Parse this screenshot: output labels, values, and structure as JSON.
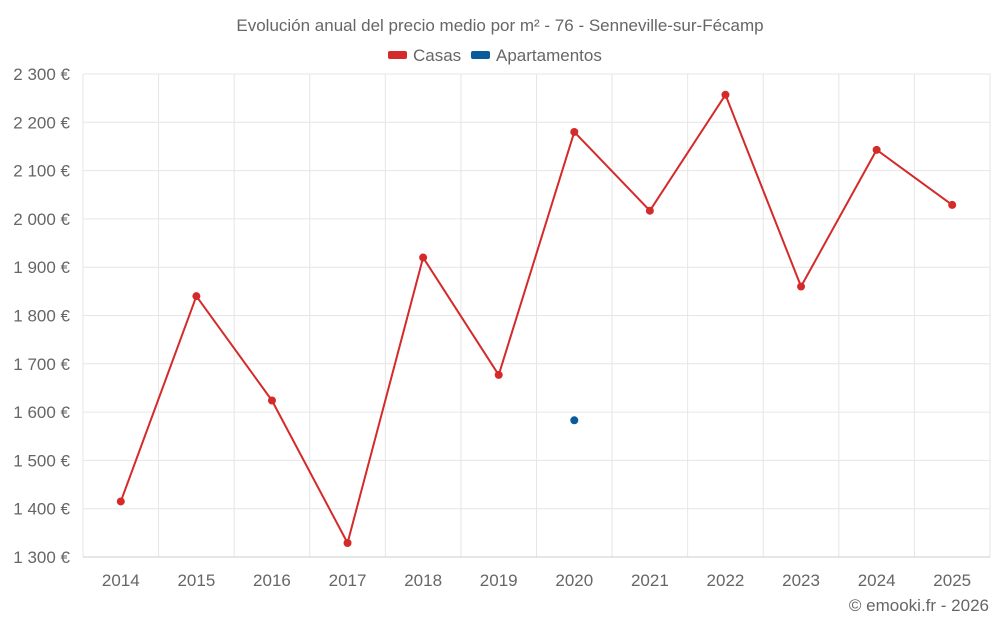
{
  "chart_data": {
    "type": "line",
    "title": "Evolución anual del precio medio por m² - 76 - Senneville-sur-Fécamp",
    "categories": [
      "2014",
      "2015",
      "2016",
      "2017",
      "2018",
      "2019",
      "2020",
      "2021",
      "2022",
      "2023",
      "2024",
      "2025"
    ],
    "series": [
      {
        "name": "Casas",
        "color": "#d42a2a",
        "values": [
          1415,
          1840,
          1624,
          1329,
          1920,
          1677,
          2180,
          2017,
          2257,
          1860,
          2143,
          2029
        ]
      },
      {
        "name": "Apartamentos",
        "color": "#0a5b9a",
        "values": [
          null,
          null,
          null,
          null,
          null,
          null,
          1583,
          null,
          null,
          null,
          null,
          null
        ]
      }
    ],
    "ylim": [
      1300,
      2300
    ],
    "yticks": [
      1300,
      1400,
      1500,
      1600,
      1700,
      1800,
      1900,
      2000,
      2100,
      2200,
      2300
    ],
    "ytick_labels": [
      "1 300 €",
      "1 400 €",
      "1 500 €",
      "1 600 €",
      "1 700 €",
      "1 800 €",
      "1 900 €",
      "2 000 €",
      "2 100 €",
      "2 200 €",
      "2 300 €"
    ],
    "grid": true,
    "legend_position": "top-center",
    "xlabel": "",
    "ylabel": ""
  },
  "credit": "© emooki.fr - 2026"
}
